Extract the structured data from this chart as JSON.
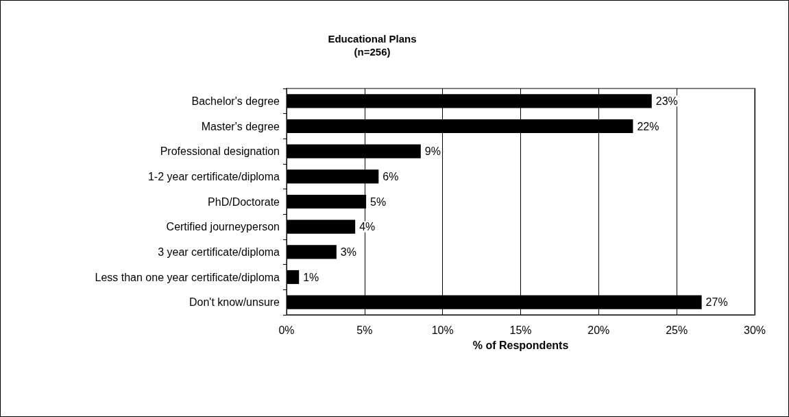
{
  "chart_data": {
    "type": "bar",
    "orientation": "horizontal",
    "title": "Educational Plans",
    "subtitle": "(n=256)",
    "xlabel": "% of Respondents",
    "categories": [
      "Bachelor's degree",
      "Master's degree",
      "Professional designation",
      "1-2 year certificate/diploma",
      "PhD/Doctorate",
      "Certified journeyperson",
      "3 year certificate/diploma",
      "Less than one year certificate/diploma",
      "Don't know/unsure"
    ],
    "values": [
      23.4,
      22.2,
      8.6,
      5.9,
      5.1,
      4.4,
      3.2,
      0.8,
      26.6
    ],
    "value_labels": [
      "23%",
      "22%",
      "9%",
      "6%",
      "5%",
      "4%",
      "3%",
      "1%",
      "27%"
    ],
    "color": "#000000",
    "xlim": [
      0,
      30
    ],
    "xticks": [
      {
        "value": 0,
        "label": "0%"
      },
      {
        "value": 5,
        "label": "5%"
      },
      {
        "value": 10,
        "label": "10%"
      },
      {
        "value": 15,
        "label": "15%"
      },
      {
        "value": 20,
        "label": "20%"
      },
      {
        "value": 25,
        "label": "25%"
      },
      {
        "value": 30,
        "label": "30%"
      }
    ],
    "grid": "x"
  }
}
